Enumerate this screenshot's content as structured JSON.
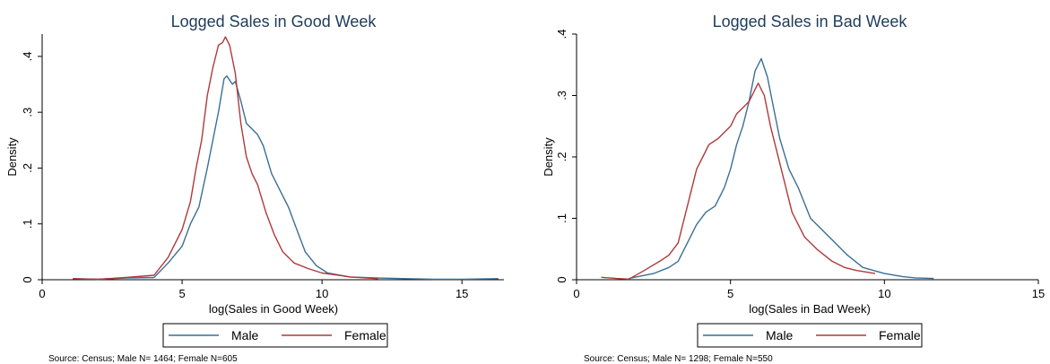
{
  "chart_data": [
    {
      "type": "line",
      "title": "Logged Sales in Good Week",
      "xlabel": "log(Sales in Good Week)",
      "ylabel": "Density",
      "xlim": [
        0,
        16.5
      ],
      "ylim": [
        0,
        0.44
      ],
      "xticks": [
        "0",
        "5",
        "10",
        "15"
      ],
      "yticks": [
        "0",
        ".1",
        ".2",
        ".3",
        ".4"
      ],
      "grid": false,
      "legend_position": "bottom",
      "note": "Source: Census; Male N= 1464; Female N=605",
      "series": [
        {
          "name": "Male",
          "color": "#3a6f96",
          "points": [
            [
              1.1,
              0.002
            ],
            [
              2.0,
              0.001
            ],
            [
              3.0,
              0.003
            ],
            [
              4.0,
              0.004
            ],
            [
              4.5,
              0.03
            ],
            [
              5.0,
              0.06
            ],
            [
              5.3,
              0.1
            ],
            [
              5.6,
              0.13
            ],
            [
              5.9,
              0.2
            ],
            [
              6.1,
              0.25
            ],
            [
              6.3,
              0.3
            ],
            [
              6.5,
              0.36
            ],
            [
              6.6,
              0.365
            ],
            [
              6.8,
              0.35
            ],
            [
              6.9,
              0.355
            ],
            [
              7.1,
              0.32
            ],
            [
              7.3,
              0.28
            ],
            [
              7.5,
              0.27
            ],
            [
              7.7,
              0.26
            ],
            [
              7.9,
              0.24
            ],
            [
              8.2,
              0.19
            ],
            [
              8.5,
              0.16
            ],
            [
              8.8,
              0.13
            ],
            [
              9.1,
              0.09
            ],
            [
              9.4,
              0.05
            ],
            [
              9.8,
              0.025
            ],
            [
              10.2,
              0.012
            ],
            [
              11.0,
              0.005
            ],
            [
              12.0,
              0.003
            ],
            [
              13.0,
              0.002
            ],
            [
              14.0,
              0.001
            ],
            [
              15.0,
              0.001
            ],
            [
              16.3,
              0.002
            ]
          ]
        },
        {
          "name": "Female",
          "color": "#b0393b",
          "points": [
            [
              1.1,
              0.002
            ],
            [
              2.0,
              0.001
            ],
            [
              3.0,
              0.004
            ],
            [
              4.0,
              0.008
            ],
            [
              4.5,
              0.04
            ],
            [
              5.0,
              0.09
            ],
            [
              5.3,
              0.14
            ],
            [
              5.5,
              0.2
            ],
            [
              5.7,
              0.25
            ],
            [
              5.9,
              0.33
            ],
            [
              6.1,
              0.38
            ],
            [
              6.3,
              0.42
            ],
            [
              6.45,
              0.425
            ],
            [
              6.55,
              0.435
            ],
            [
              6.7,
              0.42
            ],
            [
              6.9,
              0.37
            ],
            [
              7.1,
              0.28
            ],
            [
              7.3,
              0.22
            ],
            [
              7.5,
              0.19
            ],
            [
              7.7,
              0.17
            ],
            [
              8.0,
              0.12
            ],
            [
              8.3,
              0.08
            ],
            [
              8.6,
              0.05
            ],
            [
              9.0,
              0.03
            ],
            [
              9.5,
              0.02
            ],
            [
              10.0,
              0.012
            ],
            [
              11.0,
              0.005
            ],
            [
              12.0,
              0.002
            ]
          ]
        }
      ]
    },
    {
      "type": "line",
      "title": "Logged Sales in Bad Week",
      "xlabel": "log(Sales in Bad Week)",
      "ylabel": "Density",
      "xlim": [
        0,
        15
      ],
      "ylim": [
        0,
        0.4
      ],
      "xticks": [
        "0",
        "5",
        "10",
        "15"
      ],
      "yticks": [
        "0",
        ".1",
        ".2",
        ".3",
        ".4"
      ],
      "grid": false,
      "legend_position": "bottom",
      "note": "Source: Census; Male N= 1298; Female N=550",
      "series": [
        {
          "name": "Male",
          "color": "#3a6f96",
          "points": [
            [
              1.7,
              0.002
            ],
            [
              2.5,
              0.01
            ],
            [
              3.0,
              0.02
            ],
            [
              3.3,
              0.03
            ],
            [
              3.6,
              0.06
            ],
            [
              3.9,
              0.09
            ],
            [
              4.2,
              0.11
            ],
            [
              4.5,
              0.12
            ],
            [
              4.8,
              0.15
            ],
            [
              5.0,
              0.18
            ],
            [
              5.2,
              0.22
            ],
            [
              5.4,
              0.25
            ],
            [
              5.6,
              0.29
            ],
            [
              5.8,
              0.34
            ],
            [
              6.0,
              0.36
            ],
            [
              6.2,
              0.33
            ],
            [
              6.4,
              0.28
            ],
            [
              6.6,
              0.23
            ],
            [
              6.9,
              0.18
            ],
            [
              7.2,
              0.15
            ],
            [
              7.6,
              0.1
            ],
            [
              8.0,
              0.08
            ],
            [
              8.4,
              0.06
            ],
            [
              8.8,
              0.04
            ],
            [
              9.3,
              0.02
            ],
            [
              10.0,
              0.01
            ],
            [
              10.6,
              0.005
            ],
            [
              11.0,
              0.003
            ],
            [
              11.6,
              0.002
            ]
          ]
        },
        {
          "name": "Female",
          "color": "#b0393b",
          "points": [
            [
              0.8,
              0.004
            ],
            [
              1.3,
              0.002
            ],
            [
              1.7,
              0.001
            ],
            [
              2.2,
              0.015
            ],
            [
              2.7,
              0.03
            ],
            [
              3.0,
              0.04
            ],
            [
              3.3,
              0.06
            ],
            [
              3.6,
              0.12
            ],
            [
              3.9,
              0.18
            ],
            [
              4.1,
              0.2
            ],
            [
              4.3,
              0.22
            ],
            [
              4.6,
              0.23
            ],
            [
              4.8,
              0.24
            ],
            [
              5.0,
              0.25
            ],
            [
              5.2,
              0.27
            ],
            [
              5.4,
              0.28
            ],
            [
              5.6,
              0.29
            ],
            [
              5.8,
              0.31
            ],
            [
              5.9,
              0.32
            ],
            [
              6.1,
              0.3
            ],
            [
              6.3,
              0.25
            ],
            [
              6.6,
              0.19
            ],
            [
              7.0,
              0.11
            ],
            [
              7.4,
              0.07
            ],
            [
              7.8,
              0.05
            ],
            [
              8.3,
              0.03
            ],
            [
              8.7,
              0.02
            ],
            [
              9.1,
              0.015
            ],
            [
              9.7,
              0.01
            ]
          ]
        }
      ]
    }
  ]
}
